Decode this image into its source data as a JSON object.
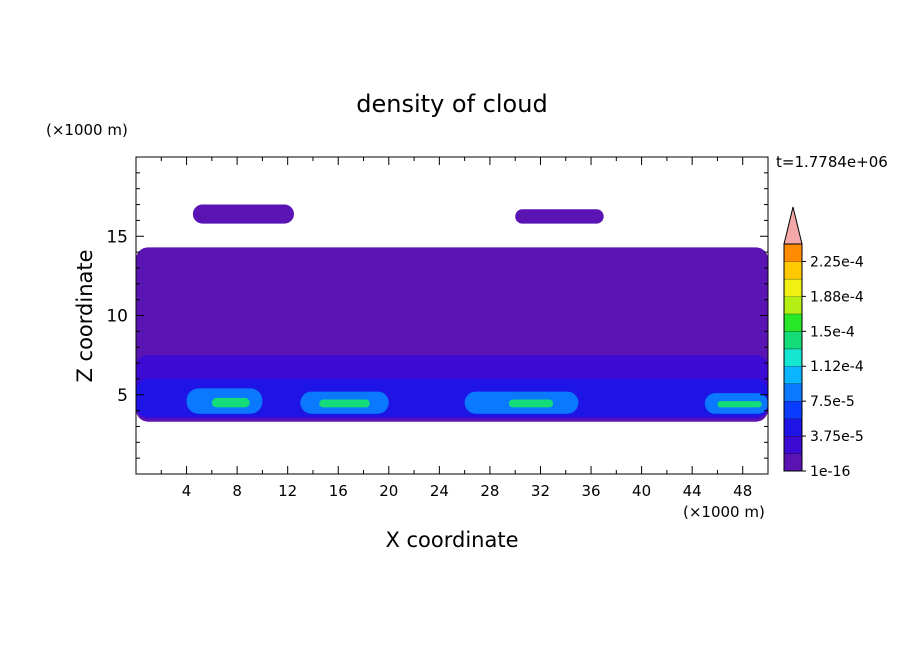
{
  "chart_data": {
    "type": "heatmap",
    "title": "density of cloud",
    "xlabel": "X coordinate",
    "ylabel": "Z coordinate",
    "x_unit": "(×1000 m)",
    "y_unit": "(×1000 m)",
    "time_label": "t=1.7784e+06",
    "xlim": [
      0,
      50
    ],
    "ylim": [
      0,
      20
    ],
    "x_ticks": [
      4,
      8,
      12,
      16,
      20,
      24,
      28,
      32,
      36,
      40,
      44,
      48
    ],
    "y_ticks": [
      5,
      10,
      15
    ],
    "colorbar": {
      "labels": [
        "1e-16",
        "3.75e-5",
        "7.5e-5",
        "1.12e-4",
        "1.5e-4",
        "1.88e-4",
        "2.25e-4"
      ],
      "levels": [
        1e-16,
        1.875e-05,
        3.75e-05,
        5.625e-05,
        7.5e-05,
        9.375e-05,
        0.0001125,
        0.00013125,
        0.00015,
        0.00016875,
        0.0001875,
        0.00020625,
        0.000225,
        0.00024375
      ],
      "colors": [
        "#5a14b4",
        "#3c0ad2",
        "#1e14e6",
        "#0a3cff",
        "#0a78ff",
        "#0ab4ff",
        "#14e6d2",
        "#14dc78",
        "#28e628",
        "#b4f014",
        "#f0f014",
        "#ffc800",
        "#ff8c00",
        "#ff4614",
        "#e61e1e"
      ],
      "over_color": "#f4a8a8",
      "extend": "max"
    },
    "fields": [
      {
        "level": 0,
        "desc": "main cloud deck",
        "x_range": [
          0,
          50
        ],
        "z_range": [
          3.3,
          14.3
        ]
      },
      {
        "level": 0,
        "desc": "upper cloud patch",
        "x_range": [
          4.5,
          12.5
        ],
        "z_range": [
          15.8,
          17.0
        ]
      },
      {
        "level": 0,
        "desc": "upper cloud patch",
        "x_range": [
          30,
          37
        ],
        "z_range": [
          15.8,
          16.7
        ]
      },
      {
        "level": 1,
        "desc": "denser layer",
        "x_range": [
          0,
          50
        ],
        "z_range": [
          3.5,
          7.5
        ]
      },
      {
        "level": 2,
        "desc": "lower dense layer",
        "x_range": [
          0,
          50
        ],
        "z_range": [
          3.6,
          6.0
        ]
      },
      {
        "level": 4,
        "desc": "cell",
        "x_range": [
          4,
          10
        ],
        "z_range": [
          3.8,
          5.4
        ]
      },
      {
        "level": 7,
        "desc": "cell core",
        "x_range": [
          6,
          9
        ],
        "z_range": [
          4.2,
          4.8
        ]
      },
      {
        "level": 4,
        "desc": "cell",
        "x_range": [
          13,
          20
        ],
        "z_range": [
          3.8,
          5.2
        ]
      },
      {
        "level": 7,
        "desc": "cell core",
        "x_range": [
          14.5,
          18.5
        ],
        "z_range": [
          4.2,
          4.7
        ]
      },
      {
        "level": 4,
        "desc": "cell",
        "x_range": [
          26,
          35
        ],
        "z_range": [
          3.8,
          5.2
        ]
      },
      {
        "level": 7,
        "desc": "cell core",
        "x_range": [
          29.5,
          33
        ],
        "z_range": [
          4.2,
          4.7
        ]
      },
      {
        "level": 4,
        "desc": "cell",
        "x_range": [
          45,
          50
        ],
        "z_range": [
          3.8,
          5.1
        ]
      },
      {
        "level": 7,
        "desc": "cell core",
        "x_range": [
          46,
          49.5
        ],
        "z_range": [
          4.2,
          4.6
        ]
      }
    ]
  }
}
